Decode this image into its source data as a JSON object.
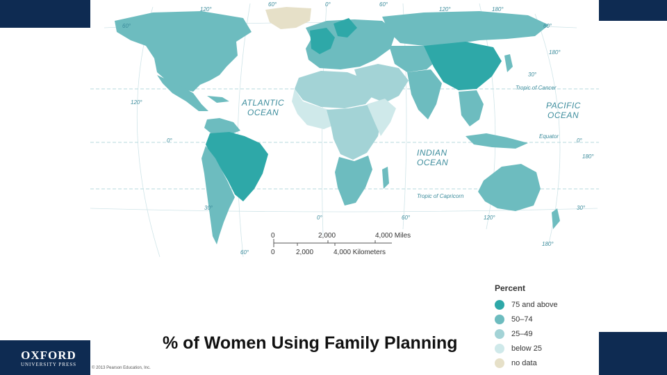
{
  "caption": "% of Women Using Family Planning",
  "copyright": "© 2013 Pearson Education, Inc.",
  "publisher": {
    "line1": "OXFORD",
    "line2": "UNIVERSITY PRESS"
  },
  "oceans": {
    "atlantic": [
      "ATLANTIC",
      "OCEAN"
    ],
    "pacific": [
      "PACIFIC",
      "OCEAN"
    ],
    "indian": [
      "INDIAN",
      "OCEAN"
    ]
  },
  "lines": {
    "cancer": "Tropic of Cancer",
    "equator": "Equator",
    "capricorn": "Tropic of Capricorn"
  },
  "graticule_labels": {
    "top_120w": "120°",
    "top_60w": "60°",
    "top_0": "0°",
    "top_60e": "60°",
    "top_120e": "120°",
    "top_180": "180°",
    "left_60": "60°",
    "left_120": "120°",
    "left_0": "0°",
    "left_30": "30°",
    "left_60s": "60°",
    "right_60": "60°",
    "right_180": "180°",
    "right_30": "30°",
    "right_0": "0°",
    "right_180b": "180°",
    "right_30s": "30°",
    "bottom_0": "0°",
    "bottom_60": "60°",
    "bottom_120": "120°",
    "bottom_180": "180°"
  },
  "scale": {
    "miles": [
      "0",
      "2,000",
      "4,000 Miles"
    ],
    "km": [
      "0",
      "2,000",
      "4,000 Kilometers"
    ]
  },
  "legend": {
    "title": "Percent",
    "items": [
      {
        "label": "75 and above",
        "color": "#2ea8a8"
      },
      {
        "label": "50–74",
        "color": "#6dbcbf"
      },
      {
        "label": "25–49",
        "color": "#a3d3d6"
      },
      {
        "label": "below 25",
        "color": "#cfe9ea"
      },
      {
        "label": "no data",
        "color": "#e6e0c8"
      }
    ]
  }
}
